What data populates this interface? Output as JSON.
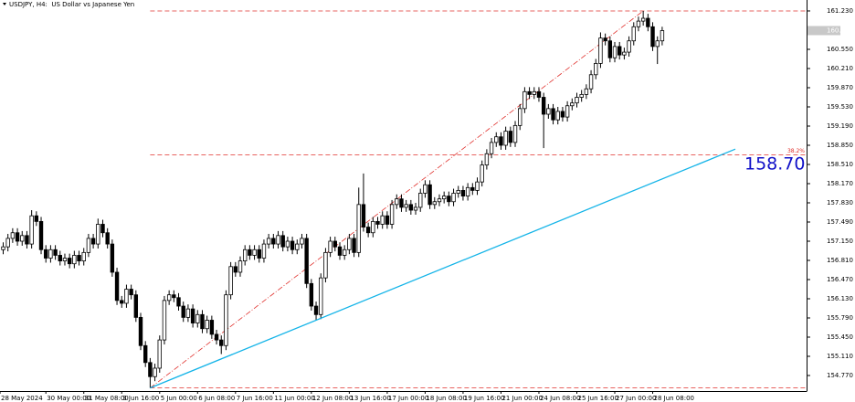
{
  "chart_data": {
    "type": "candlestick",
    "title": "USDJPY, H4:  US Dollar vs Japanese Yen",
    "categories": [
      "28 May 2024",
      null,
      null,
      null,
      null,
      null,
      null,
      null,
      null,
      "30 May 00:00",
      null,
      null,
      null,
      null,
      null,
      null,
      null,
      "31 May 08:00",
      null,
      null,
      null,
      null,
      null,
      null,
      null,
      "3 Jun 16:00",
      null,
      null,
      null,
      null,
      null,
      null,
      null,
      "5 Jun 00:00",
      null,
      null,
      null,
      null,
      null,
      null,
      null,
      "6 Jun 08:00",
      null,
      null,
      null,
      null,
      null,
      null,
      null,
      "7 Jun 16:00",
      null,
      null,
      null,
      null,
      null,
      null,
      null,
      "11 Jun 00:00",
      null,
      null,
      null,
      null,
      null,
      null,
      null,
      "12 Jun 08:00",
      null,
      null,
      null,
      null,
      null,
      null,
      null,
      "13 Jun 16:00",
      null,
      null,
      null,
      null,
      null,
      null,
      null,
      "17 Jun 00:00",
      null,
      null,
      null,
      null,
      null,
      null,
      null,
      "18 Jun 08:00",
      null,
      null,
      null,
      null,
      null,
      null,
      null,
      "19 Jun 16:00",
      null,
      null,
      null,
      null,
      null,
      null,
      null,
      "21 Jun 00:00",
      null,
      null,
      null,
      null,
      null,
      null,
      null,
      "24 Jun 08:00",
      null,
      null,
      null,
      null,
      null,
      null,
      null,
      "25 Jun 16:00",
      null,
      null,
      null,
      null,
      null,
      null,
      null,
      "27 Jun 00:00",
      null,
      null,
      null,
      null,
      null,
      null,
      null,
      "28 Jun 08:00",
      null,
      null
    ],
    "open": [
      157.0,
      157.05,
      157.2,
      157.3,
      157.15,
      157.25,
      157.1,
      157.6,
      157.5,
      157.0,
      156.85,
      157.0,
      156.9,
      156.8,
      156.85,
      156.75,
      156.9,
      156.8,
      156.95,
      157.2,
      157.1,
      157.45,
      157.3,
      157.1,
      156.6,
      156.1,
      156.05,
      156.3,
      156.2,
      155.8,
      155.3,
      155.0,
      154.75,
      154.9,
      155.4,
      156.1,
      156.2,
      156.15,
      156.0,
      155.8,
      155.95,
      155.7,
      155.85,
      155.6,
      155.75,
      155.5,
      155.4,
      155.3,
      156.2,
      156.7,
      156.6,
      156.8,
      157.0,
      156.9,
      157.0,
      156.85,
      157.1,
      157.2,
      157.1,
      157.25,
      157.05,
      157.15,
      157.0,
      157.1,
      157.2,
      156.4,
      156.0,
      155.85,
      156.5,
      156.95,
      157.15,
      157.05,
      156.9,
      157.0,
      157.2,
      156.95,
      157.8,
      157.4,
      157.3,
      157.5,
      157.45,
      157.6,
      157.45,
      157.8,
      157.9,
      157.75,
      157.8,
      157.7,
      157.75,
      158.0,
      158.15,
      157.8,
      157.85,
      157.9,
      157.95,
      157.85,
      158.0,
      158.05,
      157.95,
      158.1,
      158.05,
      158.2,
      158.5,
      158.7,
      158.9,
      159.0,
      158.85,
      159.1,
      158.9,
      159.2,
      159.5,
      159.8,
      159.75,
      159.8,
      159.7,
      159.4,
      159.5,
      159.3,
      159.45,
      159.35,
      159.55,
      159.6,
      159.7,
      159.75,
      159.85,
      160.1,
      160.3,
      160.75,
      160.7,
      160.4,
      160.6,
      160.45,
      160.5,
      160.7,
      160.95,
      161.05,
      161.1,
      160.95,
      160.6,
      160.7
    ],
    "high": [
      157.13,
      157.28,
      157.38,
      157.38,
      157.33,
      157.33,
      157.7,
      157.68,
      157.58,
      157.08,
      157.08,
      157.08,
      156.98,
      156.93,
      156.93,
      156.98,
      156.98,
      157.03,
      157.28,
      157.28,
      157.55,
      157.53,
      157.38,
      157.18,
      156.68,
      156.18,
      156.38,
      156.38,
      156.28,
      155.88,
      155.38,
      155.08,
      154.98,
      155.48,
      156.18,
      156.28,
      156.28,
      156.23,
      156.08,
      156.03,
      156.03,
      155.93,
      155.93,
      155.83,
      155.83,
      155.58,
      155.48,
      156.28,
      156.78,
      156.78,
      156.88,
      157.08,
      157.08,
      157.08,
      157.08,
      157.18,
      157.28,
      157.28,
      157.33,
      157.33,
      157.23,
      157.23,
      157.18,
      157.28,
      157.28,
      156.48,
      156.08,
      156.58,
      157.03,
      157.23,
      157.23,
      157.13,
      157.08,
      157.28,
      157.28,
      158.1,
      158.35,
      157.48,
      157.58,
      157.58,
      157.68,
      157.68,
      157.88,
      157.98,
      157.98,
      157.88,
      157.88,
      157.83,
      158.08,
      158.23,
      158.23,
      157.93,
      157.98,
      158.03,
      158.03,
      158.08,
      158.13,
      158.13,
      158.18,
      158.18,
      158.28,
      158.58,
      158.78,
      158.98,
      159.08,
      159.08,
      159.18,
      159.18,
      159.28,
      159.58,
      159.88,
      159.88,
      159.88,
      159.88,
      159.78,
      159.58,
      159.58,
      159.53,
      159.53,
      159.63,
      159.68,
      159.78,
      159.83,
      159.93,
      160.18,
      160.38,
      160.85,
      160.83,
      160.78,
      160.68,
      160.68,
      160.58,
      160.78,
      161.03,
      161.13,
      161.23,
      161.18,
      161.03,
      160.78,
      160.95
    ],
    "low": [
      156.92,
      156.97,
      157.12,
      157.07,
      157.07,
      157.02,
      157.02,
      157.42,
      156.92,
      156.77,
      156.77,
      156.82,
      156.72,
      156.72,
      156.67,
      156.67,
      156.72,
      156.72,
      156.87,
      157.02,
      157.02,
      157.22,
      157.02,
      156.52,
      156.02,
      155.97,
      155.97,
      156.12,
      155.72,
      155.22,
      154.92,
      154.55,
      154.67,
      154.82,
      155.32,
      156.02,
      156.07,
      155.92,
      155.72,
      155.72,
      155.62,
      155.62,
      155.52,
      155.52,
      155.42,
      155.32,
      155.15,
      155.22,
      156.12,
      156.52,
      156.52,
      156.72,
      156.82,
      156.82,
      156.77,
      156.77,
      157.02,
      157.02,
      157.02,
      156.97,
      156.97,
      156.92,
      156.92,
      157.02,
      156.32,
      155.92,
      155.75,
      155.77,
      156.42,
      156.87,
      156.97,
      156.82,
      156.82,
      156.92,
      156.87,
      156.87,
      157.32,
      157.22,
      157.22,
      157.37,
      157.37,
      157.37,
      157.37,
      157.72,
      157.67,
      157.67,
      157.62,
      157.62,
      157.67,
      157.92,
      157.72,
      157.72,
      157.77,
      157.82,
      157.77,
      157.77,
      157.92,
      157.87,
      157.87,
      157.97,
      157.97,
      158.12,
      158.42,
      158.62,
      158.82,
      158.77,
      158.77,
      158.82,
      158.82,
      159.12,
      159.42,
      159.67,
      159.67,
      159.62,
      158.8,
      159.32,
      159.22,
      159.22,
      159.27,
      159.27,
      159.47,
      159.52,
      159.62,
      159.67,
      159.77,
      160.02,
      160.22,
      160.62,
      160.32,
      160.32,
      160.37,
      160.37,
      160.42,
      160.62,
      160.87,
      160.97,
      160.87,
      160.52,
      160.29,
      160.62
    ],
    "close": [
      157.05,
      157.2,
      157.3,
      157.15,
      157.25,
      157.1,
      157.6,
      157.5,
      157.0,
      156.85,
      157.0,
      156.9,
      156.8,
      156.85,
      156.75,
      156.9,
      156.8,
      156.95,
      157.2,
      157.1,
      157.45,
      157.3,
      157.1,
      156.6,
      156.1,
      156.05,
      156.3,
      156.2,
      155.8,
      155.3,
      155.0,
      154.75,
      154.9,
      155.4,
      156.1,
      156.2,
      156.15,
      156.0,
      155.8,
      155.95,
      155.7,
      155.85,
      155.6,
      155.75,
      155.5,
      155.4,
      155.3,
      156.2,
      156.7,
      156.6,
      156.8,
      157.0,
      156.9,
      157.0,
      156.85,
      157.1,
      157.2,
      157.1,
      157.25,
      157.05,
      157.15,
      157.0,
      157.1,
      157.2,
      156.4,
      156.0,
      155.85,
      156.5,
      156.95,
      157.15,
      157.05,
      156.9,
      157.0,
      157.2,
      156.95,
      157.8,
      157.4,
      157.3,
      157.5,
      157.45,
      157.6,
      157.45,
      157.8,
      157.9,
      157.75,
      157.8,
      157.7,
      157.75,
      158.0,
      158.15,
      157.8,
      157.85,
      157.9,
      157.95,
      157.85,
      158.0,
      158.05,
      157.95,
      158.1,
      158.05,
      158.2,
      158.5,
      158.7,
      158.9,
      159.0,
      158.85,
      159.1,
      158.9,
      159.2,
      159.5,
      159.8,
      159.75,
      159.8,
      159.7,
      159.4,
      159.5,
      159.3,
      159.45,
      159.35,
      159.55,
      159.6,
      159.7,
      159.75,
      159.85,
      160.1,
      160.3,
      160.75,
      160.7,
      160.4,
      160.6,
      160.45,
      160.5,
      160.7,
      160.95,
      161.05,
      161.1,
      160.95,
      160.6,
      160.7,
      160.882
    ],
    "up_color": "#ffffff",
    "down_color": "#000000",
    "ylim": [
      154.495,
      161.424
    ],
    "yticks": [
      {
        "value": 161.23,
        "label": "161.230"
      },
      {
        "value": 160.55,
        "label": "160.550"
      },
      {
        "value": 160.21,
        "label": "160.210"
      },
      {
        "value": 159.87,
        "label": "159.870"
      },
      {
        "value": 159.53,
        "label": "159.530"
      },
      {
        "value": 159.19,
        "label": "159.190"
      },
      {
        "value": 158.85,
        "label": "158.850"
      },
      {
        "value": 158.51,
        "label": "158.510"
      },
      {
        "value": 158.17,
        "label": "158.170"
      },
      {
        "value": 157.83,
        "label": "157.830"
      },
      {
        "value": 157.49,
        "label": "157.490"
      },
      {
        "value": 157.15,
        "label": "157.150"
      },
      {
        "value": 156.81,
        "label": "156.810"
      },
      {
        "value": 156.47,
        "label": "156.470"
      },
      {
        "value": 156.13,
        "label": "156.130"
      },
      {
        "value": 155.79,
        "label": "155.790"
      },
      {
        "value": 155.45,
        "label": "155.450"
      },
      {
        "value": 155.11,
        "label": "155.110"
      },
      {
        "value": 154.77,
        "label": "154.770"
      }
    ],
    "fibo": {
      "high": 161.23,
      "low": 154.55,
      "levels": [
        38.2
      ],
      "level_labels": [
        "38.2%"
      ],
      "color": "#e0302c"
    },
    "trendline_label": "158.70",
    "trendline_color": "#14b4e8",
    "grid": false
  }
}
